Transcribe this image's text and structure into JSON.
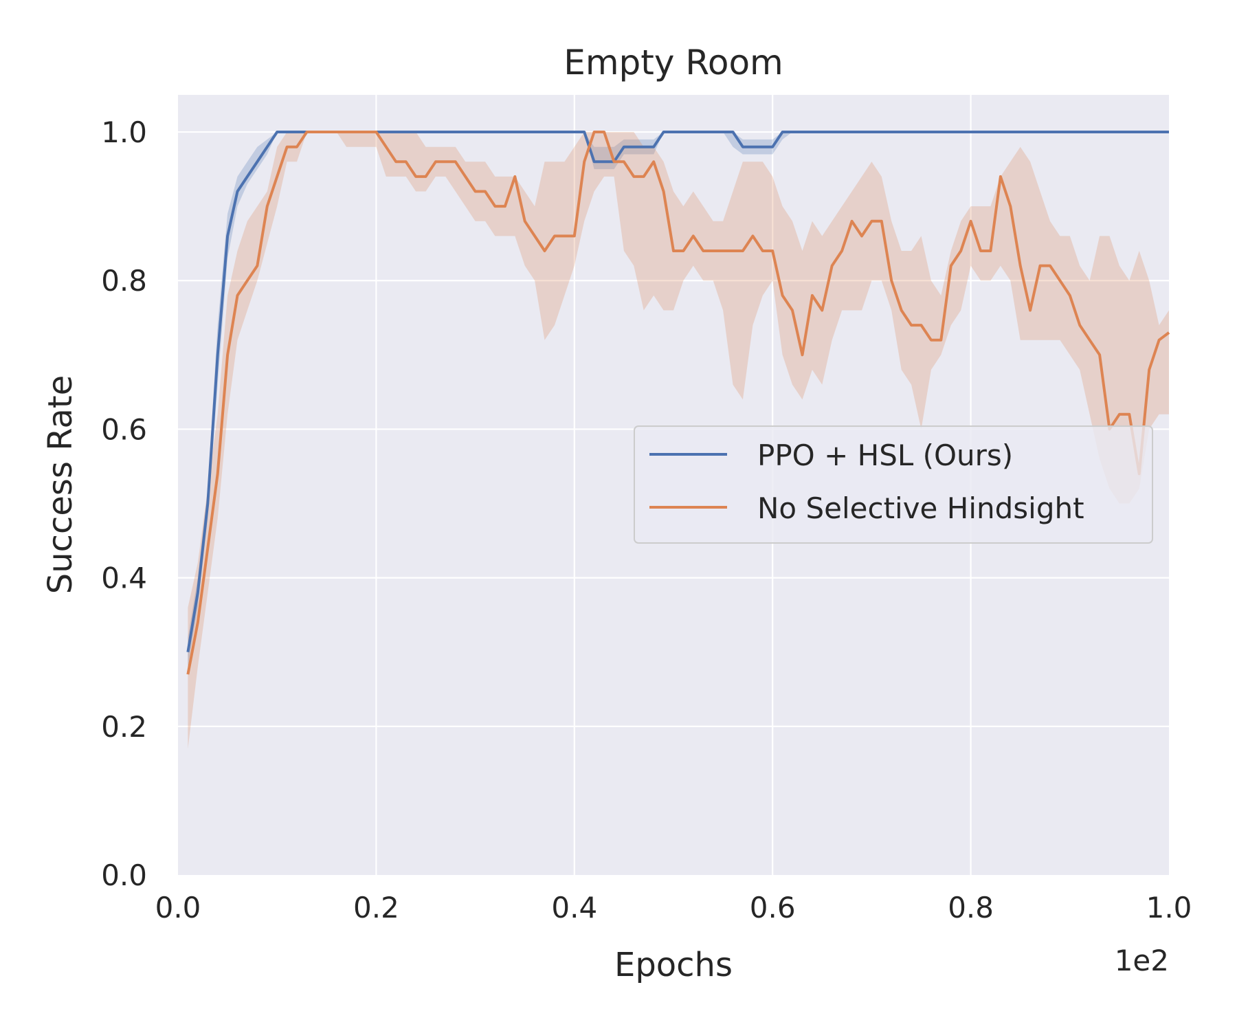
{
  "chart_data": {
    "type": "line",
    "title": "Empty Room",
    "xlabel": "Epochs",
    "ylabel": "Success Rate",
    "x_offset_label": "1e2",
    "xlim": [
      0.0,
      1.0
    ],
    "ylim": [
      0.0,
      1.05
    ],
    "xticks": [
      "0.0",
      "0.2",
      "0.4",
      "0.6",
      "0.8",
      "1.0"
    ],
    "yticks": [
      "0.0",
      "0.2",
      "0.4",
      "0.6",
      "0.8",
      "1.0"
    ],
    "grid": true,
    "legend_position": "center-right",
    "x": [
      0.01,
      0.02,
      0.03,
      0.04,
      0.05,
      0.06,
      0.07,
      0.08,
      0.09,
      0.1,
      0.11,
      0.12,
      0.13,
      0.14,
      0.15,
      0.16,
      0.17,
      0.18,
      0.19,
      0.2,
      0.21,
      0.22,
      0.23,
      0.24,
      0.25,
      0.26,
      0.27,
      0.28,
      0.29,
      0.3,
      0.31,
      0.32,
      0.33,
      0.34,
      0.35,
      0.36,
      0.37,
      0.38,
      0.39,
      0.4,
      0.41,
      0.42,
      0.43,
      0.44,
      0.45,
      0.46,
      0.47,
      0.48,
      0.49,
      0.5,
      0.51,
      0.52,
      0.53,
      0.54,
      0.55,
      0.56,
      0.57,
      0.58,
      0.59,
      0.6,
      0.61,
      0.62,
      0.63,
      0.64,
      0.65,
      0.66,
      0.67,
      0.68,
      0.69,
      0.7,
      0.71,
      0.72,
      0.73,
      0.74,
      0.75,
      0.76,
      0.77,
      0.78,
      0.79,
      0.8,
      0.81,
      0.82,
      0.83,
      0.84,
      0.85,
      0.86,
      0.87,
      0.88,
      0.89,
      0.9,
      0.91,
      0.92,
      0.93,
      0.94,
      0.95,
      0.96,
      0.97,
      0.98,
      0.99,
      1.0
    ],
    "series": [
      {
        "name": "PPO + HSL (Ours)",
        "color": "#4c72b0",
        "values": [
          0.3,
          0.38,
          0.5,
          0.7,
          0.86,
          0.92,
          0.94,
          0.96,
          0.98,
          1.0,
          1.0,
          1.0,
          1.0,
          1.0,
          1.0,
          1.0,
          1.0,
          1.0,
          1.0,
          1.0,
          1.0,
          1.0,
          1.0,
          1.0,
          1.0,
          1.0,
          1.0,
          1.0,
          1.0,
          1.0,
          1.0,
          1.0,
          1.0,
          1.0,
          1.0,
          1.0,
          1.0,
          1.0,
          1.0,
          1.0,
          1.0,
          0.96,
          0.96,
          0.96,
          0.98,
          0.98,
          0.98,
          0.98,
          1.0,
          1.0,
          1.0,
          1.0,
          1.0,
          1.0,
          1.0,
          1.0,
          0.98,
          0.98,
          0.98,
          0.98,
          1.0,
          1.0,
          1.0,
          1.0,
          1.0,
          1.0,
          1.0,
          1.0,
          1.0,
          1.0,
          1.0,
          1.0,
          1.0,
          1.0,
          1.0,
          1.0,
          1.0,
          1.0,
          1.0,
          1.0,
          1.0,
          1.0,
          1.0,
          1.0,
          1.0,
          1.0,
          1.0,
          1.0,
          1.0,
          1.0,
          1.0,
          1.0,
          1.0,
          1.0,
          1.0,
          1.0,
          1.0,
          1.0,
          1.0,
          1.0
        ],
        "lower": [
          0.28,
          0.36,
          0.48,
          0.66,
          0.83,
          0.9,
          0.93,
          0.95,
          0.97,
          1.0,
          1.0,
          1.0,
          1.0,
          1.0,
          1.0,
          1.0,
          1.0,
          1.0,
          1.0,
          1.0,
          1.0,
          1.0,
          1.0,
          1.0,
          1.0,
          1.0,
          1.0,
          1.0,
          1.0,
          1.0,
          1.0,
          1.0,
          1.0,
          1.0,
          1.0,
          1.0,
          1.0,
          1.0,
          1.0,
          1.0,
          1.0,
          0.95,
          0.95,
          0.95,
          0.97,
          0.97,
          0.97,
          0.97,
          1.0,
          1.0,
          1.0,
          1.0,
          1.0,
          1.0,
          1.0,
          0.98,
          0.97,
          0.97,
          0.97,
          0.97,
          0.99,
          1.0,
          1.0,
          1.0,
          1.0,
          1.0,
          1.0,
          1.0,
          1.0,
          1.0,
          1.0,
          1.0,
          1.0,
          1.0,
          1.0,
          1.0,
          1.0,
          1.0,
          1.0,
          1.0,
          1.0,
          1.0,
          1.0,
          1.0,
          1.0,
          1.0,
          1.0,
          1.0,
          1.0,
          1.0,
          1.0,
          1.0,
          1.0,
          1.0,
          1.0,
          1.0,
          1.0,
          1.0,
          1.0,
          1.0
        ],
        "upper": [
          0.32,
          0.4,
          0.52,
          0.74,
          0.89,
          0.94,
          0.96,
          0.98,
          0.99,
          1.0,
          1.0,
          1.0,
          1.0,
          1.0,
          1.0,
          1.0,
          1.0,
          1.0,
          1.0,
          1.0,
          1.0,
          1.0,
          1.0,
          1.0,
          1.0,
          1.0,
          1.0,
          1.0,
          1.0,
          1.0,
          1.0,
          1.0,
          1.0,
          1.0,
          1.0,
          1.0,
          1.0,
          1.0,
          1.0,
          1.0,
          1.0,
          0.98,
          0.98,
          0.98,
          0.99,
          0.99,
          0.99,
          0.99,
          1.0,
          1.0,
          1.0,
          1.0,
          1.0,
          1.0,
          1.0,
          1.0,
          0.99,
          0.99,
          0.99,
          0.99,
          1.0,
          1.0,
          1.0,
          1.0,
          1.0,
          1.0,
          1.0,
          1.0,
          1.0,
          1.0,
          1.0,
          1.0,
          1.0,
          1.0,
          1.0,
          1.0,
          1.0,
          1.0,
          1.0,
          1.0,
          1.0,
          1.0,
          1.0,
          1.0,
          1.0,
          1.0,
          1.0,
          1.0,
          1.0,
          1.0,
          1.0,
          1.0,
          1.0,
          1.0,
          1.0,
          1.0,
          1.0,
          1.0,
          1.0,
          1.0
        ]
      },
      {
        "name": "No Selective Hindsight",
        "color": "#dd8452",
        "values": [
          0.27,
          0.34,
          0.44,
          0.54,
          0.7,
          0.78,
          0.8,
          0.82,
          0.9,
          0.94,
          0.98,
          0.98,
          1.0,
          1.0,
          1.0,
          1.0,
          1.0,
          1.0,
          1.0,
          1.0,
          0.98,
          0.96,
          0.96,
          0.94,
          0.94,
          0.96,
          0.96,
          0.96,
          0.94,
          0.92,
          0.92,
          0.9,
          0.9,
          0.94,
          0.88,
          0.86,
          0.84,
          0.86,
          0.86,
          0.86,
          0.96,
          1.0,
          1.0,
          0.96,
          0.96,
          0.94,
          0.94,
          0.96,
          0.92,
          0.84,
          0.84,
          0.86,
          0.84,
          0.84,
          0.84,
          0.84,
          0.84,
          0.86,
          0.84,
          0.84,
          0.78,
          0.76,
          0.7,
          0.78,
          0.76,
          0.82,
          0.84,
          0.88,
          0.86,
          0.88,
          0.88,
          0.8,
          0.76,
          0.74,
          0.74,
          0.72,
          0.72,
          0.82,
          0.84,
          0.88,
          0.84,
          0.84,
          0.94,
          0.9,
          0.82,
          0.76,
          0.82,
          0.82,
          0.8,
          0.78,
          0.74,
          0.72,
          0.7,
          0.6,
          0.62,
          0.62,
          0.54,
          0.68,
          0.72,
          0.73
        ],
        "lower": [
          0.17,
          0.28,
          0.38,
          0.48,
          0.62,
          0.72,
          0.76,
          0.8,
          0.85,
          0.9,
          0.96,
          0.96,
          1.0,
          1.0,
          1.0,
          1.0,
          0.98,
          0.98,
          0.98,
          0.98,
          0.94,
          0.94,
          0.94,
          0.92,
          0.92,
          0.94,
          0.94,
          0.92,
          0.9,
          0.88,
          0.88,
          0.86,
          0.86,
          0.86,
          0.82,
          0.8,
          0.72,
          0.74,
          0.78,
          0.82,
          0.88,
          0.92,
          0.94,
          0.94,
          0.84,
          0.82,
          0.76,
          0.78,
          0.76,
          0.76,
          0.8,
          0.82,
          0.8,
          0.8,
          0.76,
          0.66,
          0.64,
          0.74,
          0.78,
          0.8,
          0.7,
          0.66,
          0.64,
          0.68,
          0.66,
          0.72,
          0.76,
          0.76,
          0.76,
          0.8,
          0.8,
          0.76,
          0.68,
          0.66,
          0.6,
          0.68,
          0.7,
          0.74,
          0.76,
          0.82,
          0.8,
          0.8,
          0.82,
          0.8,
          0.72,
          0.72,
          0.72,
          0.72,
          0.72,
          0.7,
          0.68,
          0.62,
          0.56,
          0.52,
          0.5,
          0.5,
          0.52,
          0.6,
          0.62,
          0.62
        ],
        "upper": [
          0.36,
          0.42,
          0.52,
          0.62,
          0.78,
          0.84,
          0.88,
          0.9,
          0.92,
          0.98,
          1.0,
          1.0,
          1.0,
          1.0,
          1.0,
          1.0,
          1.0,
          1.0,
          1.0,
          1.0,
          1.0,
          1.0,
          1.0,
          1.0,
          0.98,
          0.98,
          0.98,
          0.98,
          0.96,
          0.96,
          0.96,
          0.94,
          0.94,
          0.94,
          0.92,
          0.9,
          0.96,
          0.96,
          0.96,
          0.98,
          1.0,
          1.0,
          1.0,
          1.0,
          1.0,
          1.0,
          0.98,
          0.98,
          0.96,
          0.92,
          0.9,
          0.92,
          0.9,
          0.88,
          0.88,
          0.92,
          0.96,
          0.96,
          0.96,
          0.94,
          0.9,
          0.88,
          0.84,
          0.88,
          0.86,
          0.88,
          0.9,
          0.92,
          0.94,
          0.96,
          0.94,
          0.88,
          0.84,
          0.84,
          0.86,
          0.8,
          0.78,
          0.84,
          0.88,
          0.9,
          0.9,
          0.9,
          0.94,
          0.96,
          0.98,
          0.96,
          0.92,
          0.88,
          0.86,
          0.86,
          0.82,
          0.8,
          0.86,
          0.86,
          0.82,
          0.8,
          0.84,
          0.8,
          0.74,
          0.76
        ]
      }
    ]
  }
}
